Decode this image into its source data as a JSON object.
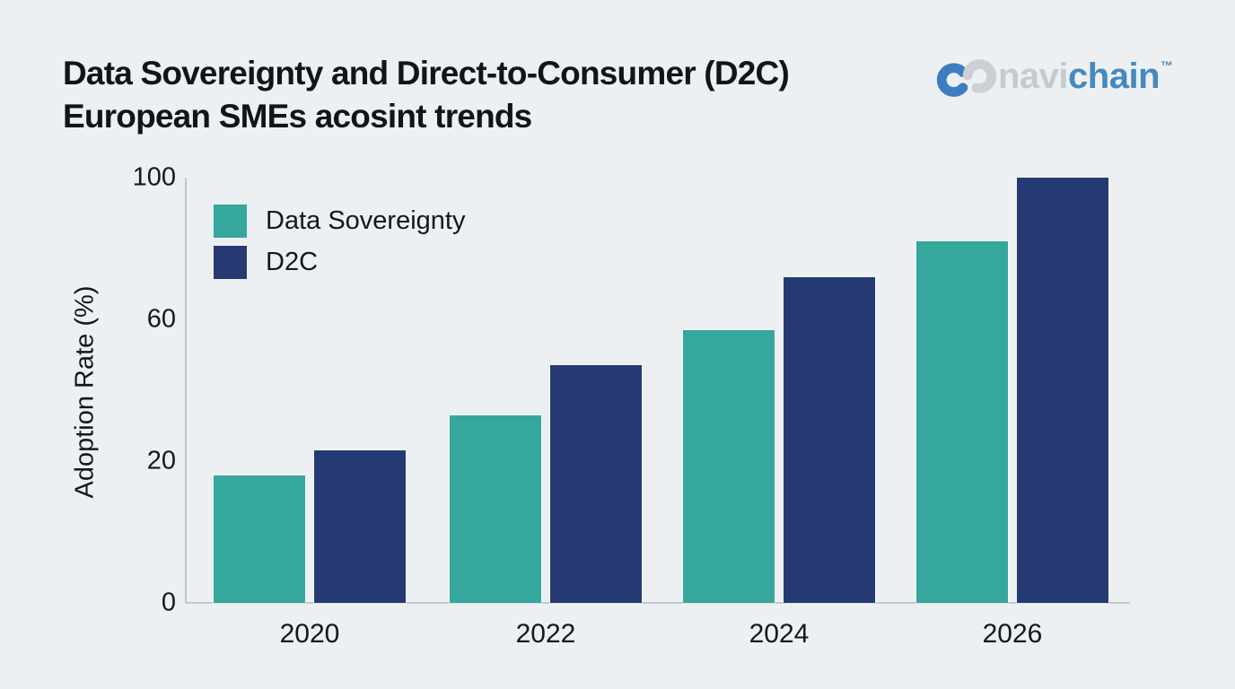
{
  "page": {
    "background": "#edf0f2"
  },
  "header": {
    "title_line1": "Data Sovereignty and Direct-to-Consumer (D2C)",
    "title_line2": "European SMEs acosint trends",
    "logo": {
      "prefix": "navi",
      "suffix": "chain",
      "tm": "™",
      "navi_color": "#c5cacf",
      "chain_color": "#4589c0",
      "icon_blue": "#3d7ec0",
      "icon_gray": "#ccd0d4"
    }
  },
  "chart_data": {
    "type": "bar",
    "categories": [
      "2020",
      "2022",
      "2024",
      "2026"
    ],
    "series": [
      {
        "name": "Data Sovereignty",
        "color": "#35a79c",
        "values": [
          18,
          33,
          57,
          82
        ]
      },
      {
        "name": "D2C",
        "color": "#253a72",
        "values": [
          23,
          47,
          72,
          100
        ]
      }
    ],
    "title": "Data Sovereignty and Direct-to-Consumer (D2C) European SMEs acosint trends",
    "xlabel": "",
    "ylabel": "Adoption Rate (%)",
    "ylim": [
      0,
      100
    ],
    "yticks": [
      0,
      20,
      60,
      100
    ],
    "yticks_equally_spaced": true,
    "grid": false,
    "legend_position": "top-left"
  }
}
